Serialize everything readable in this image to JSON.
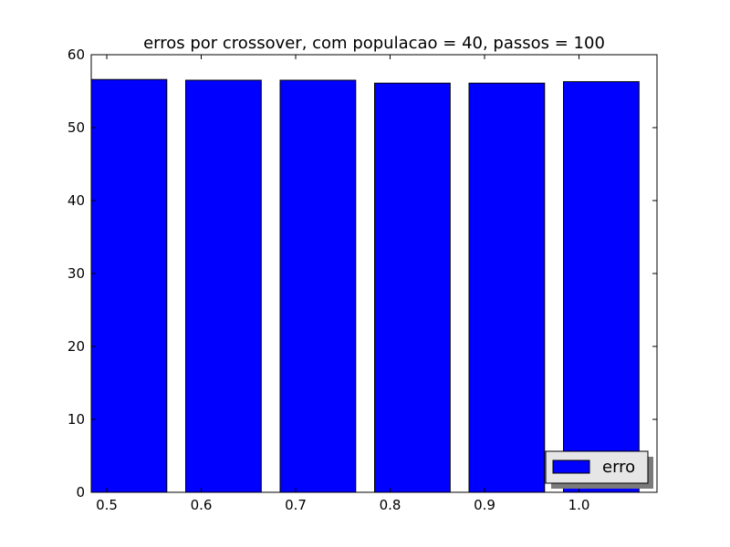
{
  "chart_data": {
    "type": "bar",
    "title": "erros por crossover, com populacao = 40, passos = 100",
    "xlabel": "",
    "ylabel": "",
    "categories": [
      "0.5",
      "0.6",
      "0.7",
      "0.8",
      "0.9",
      "1.0"
    ],
    "series": [
      {
        "name": "erro",
        "values": [
          56.6,
          56.5,
          56.5,
          56.1,
          56.1,
          56.3
        ]
      }
    ],
    "ylim": [
      0,
      60
    ],
    "yticks": [
      "0",
      "10",
      "20",
      "30",
      "40",
      "50",
      "60"
    ],
    "grid": false,
    "legend_position": "bottom-right",
    "colors": {
      "bar": "#0000ff",
      "legend_bg": "#e6e6e6"
    }
  }
}
